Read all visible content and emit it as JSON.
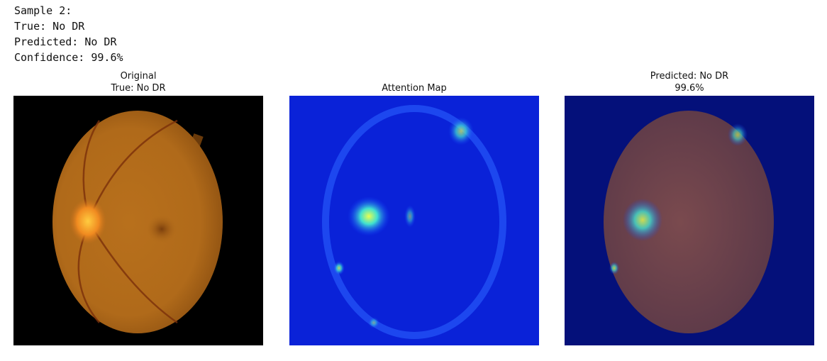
{
  "output_lines": [
    "Sample 2:",
    "True: No DR",
    "Predicted: No DR",
    "Confidence: 99.6%"
  ],
  "panels": [
    {
      "title_lines": [
        "Original",
        "True: No DR"
      ]
    },
    {
      "title_lines": [
        "Attention Map"
      ]
    },
    {
      "title_lines": [
        "Predicted: No DR",
        "99.6%"
      ]
    }
  ]
}
